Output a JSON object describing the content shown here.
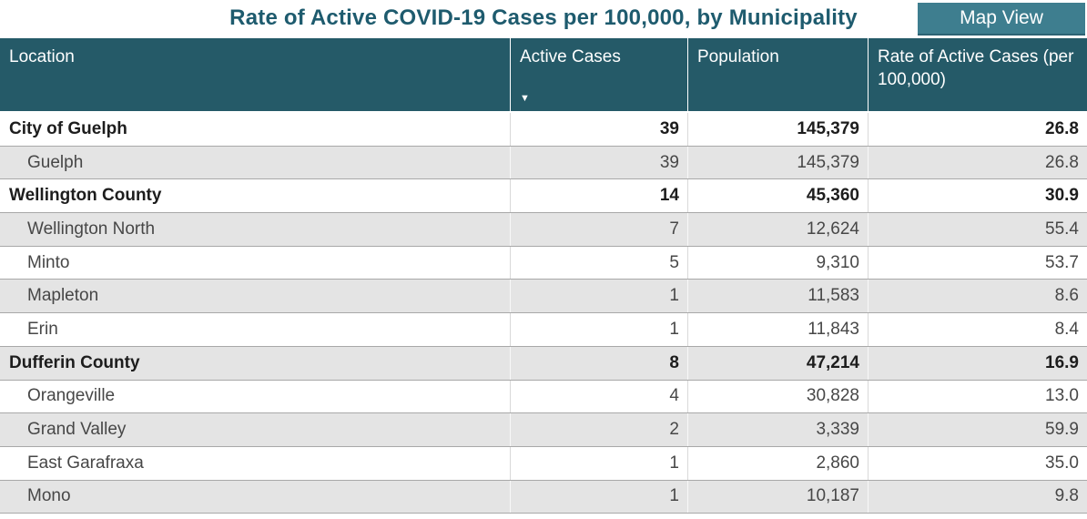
{
  "title": "Rate of Active COVID-19 Cases per 100,000, by Municipality",
  "map_view_button": "Map View",
  "table": {
    "columns": [
      {
        "label": "Location"
      },
      {
        "label": "Active Cases",
        "sort": "descending"
      },
      {
        "label": "Population"
      },
      {
        "label": "Rate of Active Cases (per 100,000)"
      }
    ],
    "rows": [
      {
        "location": "City of Guelph",
        "active_cases": "39",
        "population": "145,379",
        "rate": "26.8",
        "level": "parent"
      },
      {
        "location": "Guelph",
        "active_cases": "39",
        "population": "145,379",
        "rate": "26.8",
        "level": "child"
      },
      {
        "location": "Wellington County",
        "active_cases": "14",
        "population": "45,360",
        "rate": "30.9",
        "level": "parent"
      },
      {
        "location": "Wellington North",
        "active_cases": "7",
        "population": "12,624",
        "rate": "55.4",
        "level": "child"
      },
      {
        "location": "Minto",
        "active_cases": "5",
        "population": "9,310",
        "rate": "53.7",
        "level": "child"
      },
      {
        "location": "Mapleton",
        "active_cases": "1",
        "population": "11,583",
        "rate": "8.6",
        "level": "child"
      },
      {
        "location": "Erin",
        "active_cases": "1",
        "population": "11,843",
        "rate": "8.4",
        "level": "child"
      },
      {
        "location": "Dufferin County",
        "active_cases": "8",
        "population": "47,214",
        "rate": "16.9",
        "level": "parent"
      },
      {
        "location": "Orangeville",
        "active_cases": "4",
        "population": "30,828",
        "rate": "13.0",
        "level": "child"
      },
      {
        "location": "Grand Valley",
        "active_cases": "2",
        "population": "3,339",
        "rate": "59.9",
        "level": "child"
      },
      {
        "location": "East Garafraxa",
        "active_cases": "1",
        "population": "2,860",
        "rate": "35.0",
        "level": "child"
      },
      {
        "location": "Mono",
        "active_cases": "1",
        "population": "10,187",
        "rate": "9.8",
        "level": "child"
      }
    ]
  },
  "icons": {
    "sort_descending_icon": "▼"
  },
  "colors": {
    "header_background": "#255A68",
    "button_background": "#3E7E8F",
    "title_text": "#1E5B6E",
    "band_row_background": "#E4E4E4",
    "row_separator": "#A8A8A8"
  }
}
